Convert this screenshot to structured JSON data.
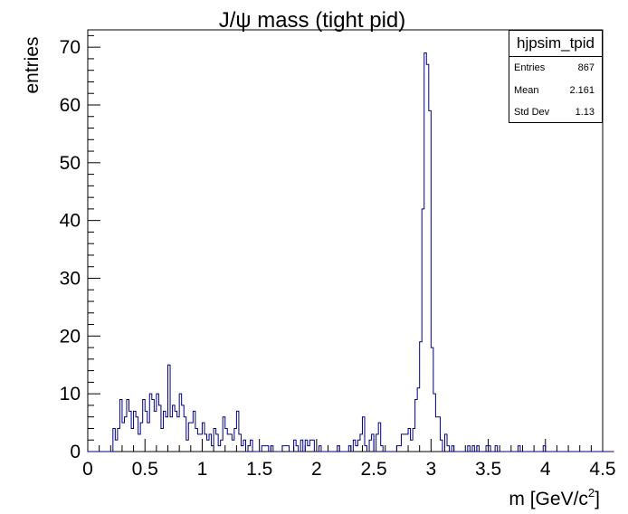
{
  "chart_data": {
    "type": "bar",
    "title": "J/ψ mass (tight pid)",
    "xlabel": "m [GeV/c",
    "xlabel_sup": "2",
    "xlabel_suffix": "]",
    "ylabel": "entries",
    "xlim": [
      0,
      4.5
    ],
    "ylim": [
      0,
      73
    ],
    "x_ticks": [
      0,
      0.5,
      1,
      1.5,
      2,
      2.5,
      3,
      3.5,
      4,
      4.5
    ],
    "x_tick_labels": [
      "0",
      "0.5",
      "1",
      "1.5",
      "2",
      "2.5",
      "3",
      "3.5",
      "4",
      "4.5"
    ],
    "y_ticks": [
      0,
      10,
      20,
      30,
      40,
      50,
      60,
      70
    ],
    "y_tick_labels": [
      "0",
      "10",
      "20",
      "30",
      "40",
      "50",
      "60",
      "70"
    ],
    "bin_width": 0.02,
    "x_start": 0,
    "values": [
      0,
      0,
      0,
      0,
      0,
      0,
      0,
      0,
      0,
      0,
      0,
      4,
      2,
      4,
      9,
      5,
      6,
      9,
      7,
      4,
      7,
      6,
      3,
      5,
      9,
      7,
      5,
      10,
      9,
      7,
      10,
      8,
      4,
      7,
      6,
      15,
      6,
      8,
      7,
      6,
      10,
      8,
      6,
      2,
      5,
      5,
      7,
      4,
      3,
      3,
      5,
      3,
      2,
      3,
      1,
      4,
      3,
      1,
      2,
      6,
      4,
      3,
      3,
      2,
      4,
      7,
      3,
      1,
      2,
      0,
      1,
      2,
      0,
      0,
      0,
      0,
      1,
      1,
      1,
      0,
      1,
      0,
      0,
      0,
      0,
      1,
      1,
      1,
      0,
      0,
      2,
      1,
      0,
      2,
      0,
      2,
      1,
      2,
      2,
      0,
      0,
      1,
      0,
      0,
      0,
      0,
      0,
      0,
      0,
      1,
      0,
      0,
      0,
      0,
      1,
      0,
      2,
      1,
      2,
      3,
      6,
      1,
      0,
      2,
      3,
      0,
      3,
      5,
      1,
      0,
      0,
      0,
      0,
      0,
      0,
      1,
      1,
      3,
      3,
      3,
      4,
      2,
      4,
      9,
      11,
      19,
      42,
      69,
      67,
      59,
      18,
      10,
      6,
      6,
      2,
      0,
      3,
      1,
      0,
      1,
      0,
      0,
      0,
      0,
      0,
      0,
      1,
      0,
      1,
      0,
      1,
      0,
      0,
      0,
      1,
      1,
      0,
      0,
      1,
      0,
      0,
      0,
      0,
      0,
      0,
      0,
      0,
      0,
      1,
      0,
      0,
      0,
      0,
      0,
      0,
      0,
      0,
      0,
      0,
      1,
      0,
      0,
      0,
      0,
      0,
      0,
      0,
      0,
      0,
      0,
      0,
      0,
      0,
      0,
      0,
      0,
      0,
      0,
      0,
      0,
      0,
      0,
      0,
      0,
      0,
      0,
      0,
      0,
      0,
      0
    ],
    "legend": "top-right",
    "grid": false,
    "colors": {
      "line": "#000080",
      "axis": "#000000"
    }
  },
  "stats_box": {
    "title": "hjpsim_tpid",
    "rows": [
      {
        "label": "Entries",
        "value": "867"
      },
      {
        "label": "Mean",
        "value": "2.161"
      },
      {
        "label": "Std Dev",
        "value": "1.13"
      }
    ]
  }
}
